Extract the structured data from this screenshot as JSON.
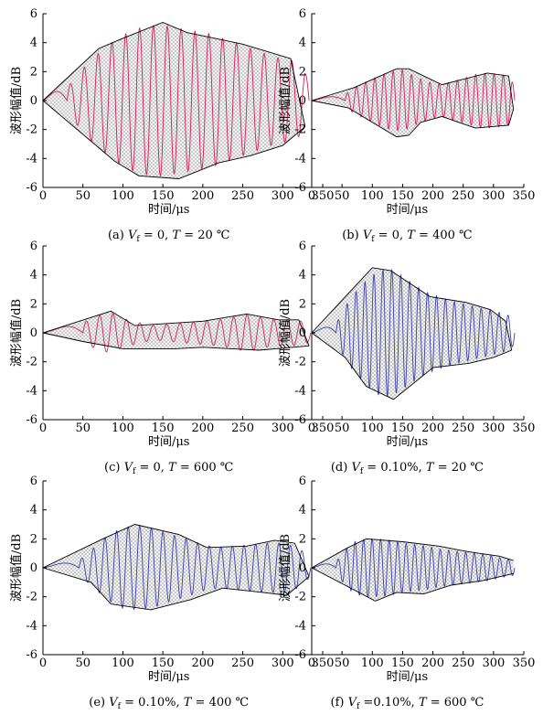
{
  "chart_data": [
    {
      "type": "line",
      "caption": "(a) V_f = 0, T = 20 ℃",
      "caption_parts": [
        "(a) ",
        "V",
        "f",
        " = 0, ",
        "T",
        " = 20 ℃"
      ],
      "xlabel": "时间/μs",
      "ylabel": "波形幅值/dB",
      "xlim": [
        0,
        350
      ],
      "ylim": [
        -6,
        6
      ],
      "xticks": [
        0,
        50,
        100,
        150,
        200,
        250,
        300,
        350
      ],
      "yticks": [
        -6,
        -4,
        -2,
        0,
        2,
        4,
        6
      ],
      "line_color": "#d81b60",
      "wave": {
        "start": 0,
        "end": 333,
        "onset": 30,
        "cycles": 17.5,
        "env_x": [
          0,
          30,
          40,
          50,
          60,
          70,
          80,
          90,
          100,
          110,
          120,
          130,
          140,
          150,
          160,
          170,
          180,
          190,
          200,
          210,
          220,
          230,
          240,
          250,
          260,
          270,
          280,
          290,
          300,
          310,
          320,
          333
        ],
        "env_y": [
          0.3,
          0.9,
          1.5,
          2.2,
          2.8,
          3.3,
          3.7,
          4.2,
          4.5,
          4.8,
          5.0,
          5.1,
          5.2,
          5.2,
          5.1,
          5.0,
          4.9,
          4.8,
          4.7,
          4.6,
          4.4,
          4.2,
          4.0,
          3.8,
          3.6,
          3.4,
          3.2,
          3.0,
          2.9,
          2.8,
          2.5,
          1.5
        ]
      },
      "upper_envelope": [
        [
          0,
          0
        ],
        [
          70,
          3.6
        ],
        [
          100,
          4.3
        ],
        [
          150,
          5.4
        ],
        [
          180,
          4.7
        ],
        [
          250,
          3.9
        ],
        [
          310,
          2.9
        ],
        [
          328,
          -1.8
        ]
      ],
      "lower_envelope": [
        [
          0,
          0
        ],
        [
          90,
          -4.2
        ],
        [
          120,
          -5.2
        ],
        [
          170,
          -5.4
        ],
        [
          220,
          -4.3
        ],
        [
          260,
          -3.8
        ],
        [
          300,
          -3.1
        ],
        [
          328,
          -1.8
        ]
      ]
    },
    {
      "type": "line",
      "caption": "(b) V_f = 0, T = 400 ℃",
      "caption_parts": [
        "(b) ",
        "V",
        "f",
        " = 0, ",
        "T",
        " = 400 ℃"
      ],
      "xlabel": "时间/μs",
      "ylabel": "波形幅值/dB",
      "xlim": [
        0,
        350
      ],
      "ylim": [
        -6,
        6
      ],
      "xticks": [
        0,
        50,
        100,
        150,
        200,
        250,
        300,
        350
      ],
      "yticks": [
        -6,
        -4,
        -2,
        0,
        2,
        4,
        6
      ],
      "line_color": "#d81b60",
      "wave": {
        "start": 0,
        "end": 335,
        "onset": 55,
        "cycles": 18.5,
        "env_x": [
          0,
          55,
          70,
          90,
          110,
          130,
          150,
          160,
          180,
          200,
          215,
          230,
          250,
          270,
          290,
          310,
          325,
          335
        ],
        "env_y": [
          0.1,
          0.4,
          0.9,
          1.3,
          1.7,
          2.0,
          2.1,
          1.9,
          1.5,
          1.2,
          1.1,
          1.3,
          1.5,
          1.8,
          1.9,
          1.8,
          1.7,
          1.0
        ]
      },
      "upper_envelope": [
        [
          0,
          0
        ],
        [
          70,
          0.9
        ],
        [
          140,
          2.2
        ],
        [
          160,
          2.2
        ],
        [
          215,
          1.1
        ],
        [
          290,
          1.9
        ],
        [
          325,
          1.7
        ],
        [
          333,
          -0.6
        ]
      ],
      "lower_envelope": [
        [
          0,
          0
        ],
        [
          60,
          -0.5
        ],
        [
          140,
          -2.5
        ],
        [
          160,
          -2.4
        ],
        [
          180,
          -1.5
        ],
        [
          215,
          -1.1
        ],
        [
          270,
          -1.9
        ],
        [
          325,
          -1.7
        ],
        [
          333,
          -0.6
        ]
      ]
    },
    {
      "type": "line",
      "caption": "(c) V_f = 0, T = 600 ℃",
      "caption_parts": [
        "(c) ",
        "V",
        "f",
        " = 0, ",
        "T",
        " = 600 ℃"
      ],
      "xlabel": "时间/μs",
      "ylabel": "波形幅值/dB",
      "xlim": [
        0,
        350
      ],
      "ylim": [
        -6,
        6
      ],
      "xticks": [
        0,
        50,
        100,
        150,
        200,
        250,
        300,
        350
      ],
      "yticks": [
        -6,
        -4,
        -2,
        0,
        2,
        4,
        6
      ],
      "line_color": "#d81b60",
      "wave": {
        "start": 0,
        "end": 335,
        "onset": 50,
        "cycles": 17,
        "env_x": [
          0,
          50,
          70,
          85,
          100,
          120,
          140,
          160,
          180,
          200,
          220,
          240,
          255,
          270,
          290,
          310,
          325,
          335
        ],
        "env_y": [
          0.1,
          0.7,
          1.2,
          1.4,
          1.0,
          0.7,
          0.5,
          0.6,
          0.7,
          0.8,
          0.9,
          1.1,
          1.3,
          1.1,
          0.9,
          0.9,
          0.8,
          0.6
        ]
      },
      "upper_envelope": [
        [
          0,
          0
        ],
        [
          85,
          1.5
        ],
        [
          115,
          0.5
        ],
        [
          200,
          0.8
        ],
        [
          255,
          1.3
        ],
        [
          295,
          0.9
        ],
        [
          320,
          0.9
        ],
        [
          333,
          -0.9
        ]
      ],
      "lower_envelope": [
        [
          0,
          0
        ],
        [
          50,
          -0.6
        ],
        [
          100,
          -1.1
        ],
        [
          165,
          -1.1
        ],
        [
          200,
          -1.0
        ],
        [
          270,
          -1.2
        ],
        [
          333,
          -0.9
        ]
      ]
    },
    {
      "type": "line",
      "caption": "(d) V_f = 0.10%, T = 20 ℃",
      "caption_parts": [
        "(d) ",
        "V",
        "f",
        " = 0.10%, ",
        "T",
        " = 20 ℃"
      ],
      "xlabel": "时间/μs",
      "ylabel": "波形幅值/dB",
      "xlim": [
        0,
        350
      ],
      "ylim": [
        -6,
        6
      ],
      "xticks": [
        0,
        50,
        100,
        150,
        200,
        250,
        300,
        350
      ],
      "yticks": [
        -6,
        -4,
        -2,
        0,
        2,
        4,
        6
      ],
      "line_color": "#3a3fb0",
      "wave": {
        "start": 0,
        "end": 335,
        "onset": 40,
        "cycles": 20,
        "env_x": [
          0,
          40,
          55,
          70,
          90,
          110,
          130,
          150,
          170,
          190,
          210,
          230,
          250,
          270,
          290,
          310,
          325,
          335
        ],
        "env_y": [
          0.1,
          0.6,
          1.8,
          2.7,
          3.6,
          4.3,
          4.4,
          3.9,
          3.3,
          2.8,
          2.5,
          2.2,
          2.0,
          1.8,
          1.6,
          1.4,
          1.2,
          0.8
        ]
      },
      "upper_envelope": [
        [
          0,
          0
        ],
        [
          100,
          4.5
        ],
        [
          130,
          4.3
        ],
        [
          195,
          2.5
        ],
        [
          255,
          2.1
        ],
        [
          295,
          1.6
        ],
        [
          320,
          0.8
        ],
        [
          330,
          -1.2
        ]
      ],
      "lower_envelope": [
        [
          0,
          0
        ],
        [
          55,
          -1.7
        ],
        [
          90,
          -3.7
        ],
        [
          135,
          -4.6
        ],
        [
          200,
          -2.4
        ],
        [
          260,
          -2.1
        ],
        [
          300,
          -1.7
        ],
        [
          330,
          -1.2
        ]
      ]
    },
    {
      "type": "line",
      "caption": "(e) V_f = 0.10%, T = 400 ℃",
      "caption_parts": [
        "(e) ",
        "V",
        "f",
        " = 0.10%, ",
        "T",
        " = 400 ℃"
      ],
      "xlabel": "时间/μs",
      "ylabel": "波形幅值/dB",
      "xlim": [
        0,
        350
      ],
      "ylim": [
        -6,
        6
      ],
      "xticks": [
        0,
        50,
        100,
        150,
        200,
        250,
        300,
        350
      ],
      "yticks": [
        -6,
        -4,
        -2,
        0,
        2,
        4,
        6
      ],
      "line_color": "#3a3fb0",
      "wave": {
        "start": 0,
        "end": 335,
        "onset": 45,
        "cycles": 20,
        "env_x": [
          0,
          45,
          60,
          80,
          100,
          120,
          140,
          160,
          180,
          200,
          220,
          240,
          260,
          280,
          300,
          320,
          335
        ],
        "env_y": [
          0.1,
          0.5,
          1.2,
          2.2,
          2.8,
          2.9,
          2.7,
          2.3,
          2.0,
          1.6,
          1.4,
          1.5,
          1.6,
          1.7,
          1.7,
          1.4,
          0.6
        ]
      },
      "upper_envelope": [
        [
          0,
          0
        ],
        [
          75,
          2.0
        ],
        [
          115,
          3.0
        ],
        [
          170,
          2.3
        ],
        [
          205,
          1.4
        ],
        [
          255,
          1.5
        ],
        [
          290,
          1.9
        ],
        [
          315,
          1.7
        ],
        [
          333,
          -0.6
        ]
      ],
      "lower_envelope": [
        [
          0,
          0
        ],
        [
          60,
          -1.0
        ],
        [
          85,
          -2.5
        ],
        [
          135,
          -2.9
        ],
        [
          185,
          -2.2
        ],
        [
          225,
          -1.4
        ],
        [
          275,
          -1.7
        ],
        [
          305,
          -1.9
        ],
        [
          333,
          -0.6
        ]
      ]
    },
    {
      "type": "line",
      "caption": "(f) V_f =0.10%, T = 600 ℃",
      "caption_parts": [
        "(f) ",
        "V",
        "f",
        " =0.10%, ",
        "T",
        " = 600 ℃"
      ],
      "xlabel": "时间/μs",
      "ylabel": "波形幅值/dB",
      "xlim": [
        0,
        350
      ],
      "ylim": [
        -6,
        6
      ],
      "xticks": [
        0,
        50,
        100,
        150,
        200,
        250,
        300,
        350
      ],
      "yticks": [
        -6,
        -4,
        -2,
        0,
        2,
        4,
        6
      ],
      "line_color": "#3a3fb0",
      "wave": {
        "start": 0,
        "end": 335,
        "onset": 40,
        "cycles": 21,
        "env_x": [
          0,
          40,
          55,
          70,
          90,
          110,
          130,
          150,
          170,
          190,
          210,
          230,
          250,
          270,
          290,
          310,
          335
        ],
        "env_y": [
          0.1,
          0.4,
          1.2,
          1.8,
          2.0,
          2.0,
          1.9,
          1.7,
          1.6,
          1.5,
          1.3,
          1.2,
          1.1,
          1.0,
          0.9,
          0.7,
          0.5
        ]
      },
      "upper_envelope": [
        [
          0,
          0
        ],
        [
          60,
          1.4
        ],
        [
          90,
          2.0
        ],
        [
          150,
          1.8
        ],
        [
          210,
          1.5
        ],
        [
          260,
          1.1
        ],
        [
          310,
          0.8
        ],
        [
          333,
          0.5
        ]
      ],
      "lower_envelope": [
        [
          0,
          0
        ],
        [
          55,
          -1.2
        ],
        [
          105,
          -2.3
        ],
        [
          140,
          -1.7
        ],
        [
          185,
          -1.8
        ],
        [
          230,
          -1.2
        ],
        [
          280,
          -0.9
        ],
        [
          333,
          -0.4
        ]
      ]
    }
  ]
}
